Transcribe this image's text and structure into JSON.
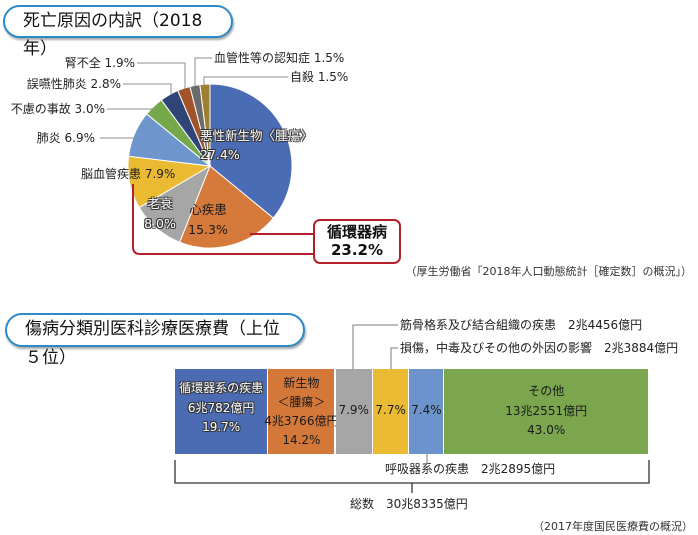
{
  "section1": {
    "title": "死亡原因の内訳（2018年）",
    "source": "（厚生労働省「2018年人口動態統計［確定数］の概況」）",
    "callout": {
      "label": "循環器病",
      "value": "23.2%",
      "color": "#b3222c"
    }
  },
  "section2": {
    "title": "傷病分類別医科診療医療費（上位５位）",
    "source": "（2017年度国民医療費の概況）",
    "total_label": "総数　30兆8335億円",
    "callouts": {
      "musculoskeletal": "筋骨格系及び結合組織の疾患　2兆4456億円",
      "injury": "損傷，中毒及びその他の外因の影響　2兆3884億円",
      "respiratory": "呼吸器系の疾患　2兆2895億円"
    },
    "segments_text": {
      "circulatory": [
        "循環器系の疾患",
        "6兆782億円",
        "19.7%"
      ],
      "neoplasm": [
        "新生物",
        "＜腫瘍＞",
        "4兆3766億円",
        "14.2%"
      ],
      "musculoskeletal": [
        "7.9%"
      ],
      "injury": [
        "7.7%"
      ],
      "respiratory": [
        "7.4%"
      ],
      "other": [
        "その他",
        "13兆2551億円",
        "43.0%"
      ]
    }
  },
  "pie_labels": {
    "cancer": [
      "悪性新生物〈腫瘍〉",
      "27.4%"
    ],
    "heart": [
      "心疾患",
      "15.3%"
    ],
    "senility": [
      "老衰",
      "8.0%"
    ],
    "cerebro": "脳血管疾患 7.9%",
    "pneumonia": "肺炎 6.9%",
    "accident": "不慮の事故 3.0%",
    "aspiration": "誤嚥性肺炎 2.8%",
    "renal": "腎不全 1.9%",
    "dementia": "血管性等の認知症 1.5%",
    "suicide": "自殺 1.5%"
  },
  "chart_data": [
    {
      "type": "pie",
      "title": "死亡原因の内訳（2018年）",
      "start_angle": "12 o'clock, clockwise",
      "note": "Pie is normalized over displayed categories (sum 76.2%)",
      "categories": [
        "悪性新生物〈腫瘍〉",
        "心疾患",
        "老衰",
        "脳血管疾患",
        "肺炎",
        "不慮の事故",
        "誤嚥性肺炎",
        "腎不全",
        "血管性等の認知症",
        "自殺"
      ],
      "values": [
        27.4,
        15.3,
        8.0,
        7.9,
        6.9,
        3.0,
        2.8,
        1.9,
        1.5,
        1.5
      ],
      "colors": [
        "#4a6cb4",
        "#d57a3b",
        "#a6a6a6",
        "#ebba33",
        "#6f95cd",
        "#75a84b",
        "#2f4477",
        "#a3532b",
        "#6b6b6b",
        "#9e7f2f"
      ],
      "group_annotation": {
        "label": "循環器病",
        "value": 23.2,
        "members": [
          "心疾患",
          "脳血管疾患"
        ]
      },
      "source": "厚生労働省「2018年人口動態統計［確定数］の概況」"
    },
    {
      "type": "bar",
      "orientation": "horizontal-stacked-100%",
      "title": "傷病分類別医科診療医療費（上位５位）",
      "categories": [
        "循環器系の疾患",
        "新生物＜腫瘍＞",
        "筋骨格系及び結合組織の疾患",
        "損傷，中毒及びその他の外因の影響",
        "呼吸器系の疾患",
        "その他"
      ],
      "values": [
        19.7,
        14.2,
        7.9,
        7.7,
        7.4,
        43.0
      ],
      "amounts": [
        "6兆782億円",
        "4兆3766億円",
        "2兆4456億円",
        "2兆3884億円",
        "2兆2895億円",
        "13兆2551億円"
      ],
      "colors": [
        "#4b6cb3",
        "#d4783a",
        "#a6a6a6",
        "#ebba33",
        "#6d93cd",
        "#7ba64d"
      ],
      "total": "30兆8335億円",
      "source": "2017年度国民医療費の概況"
    }
  ]
}
